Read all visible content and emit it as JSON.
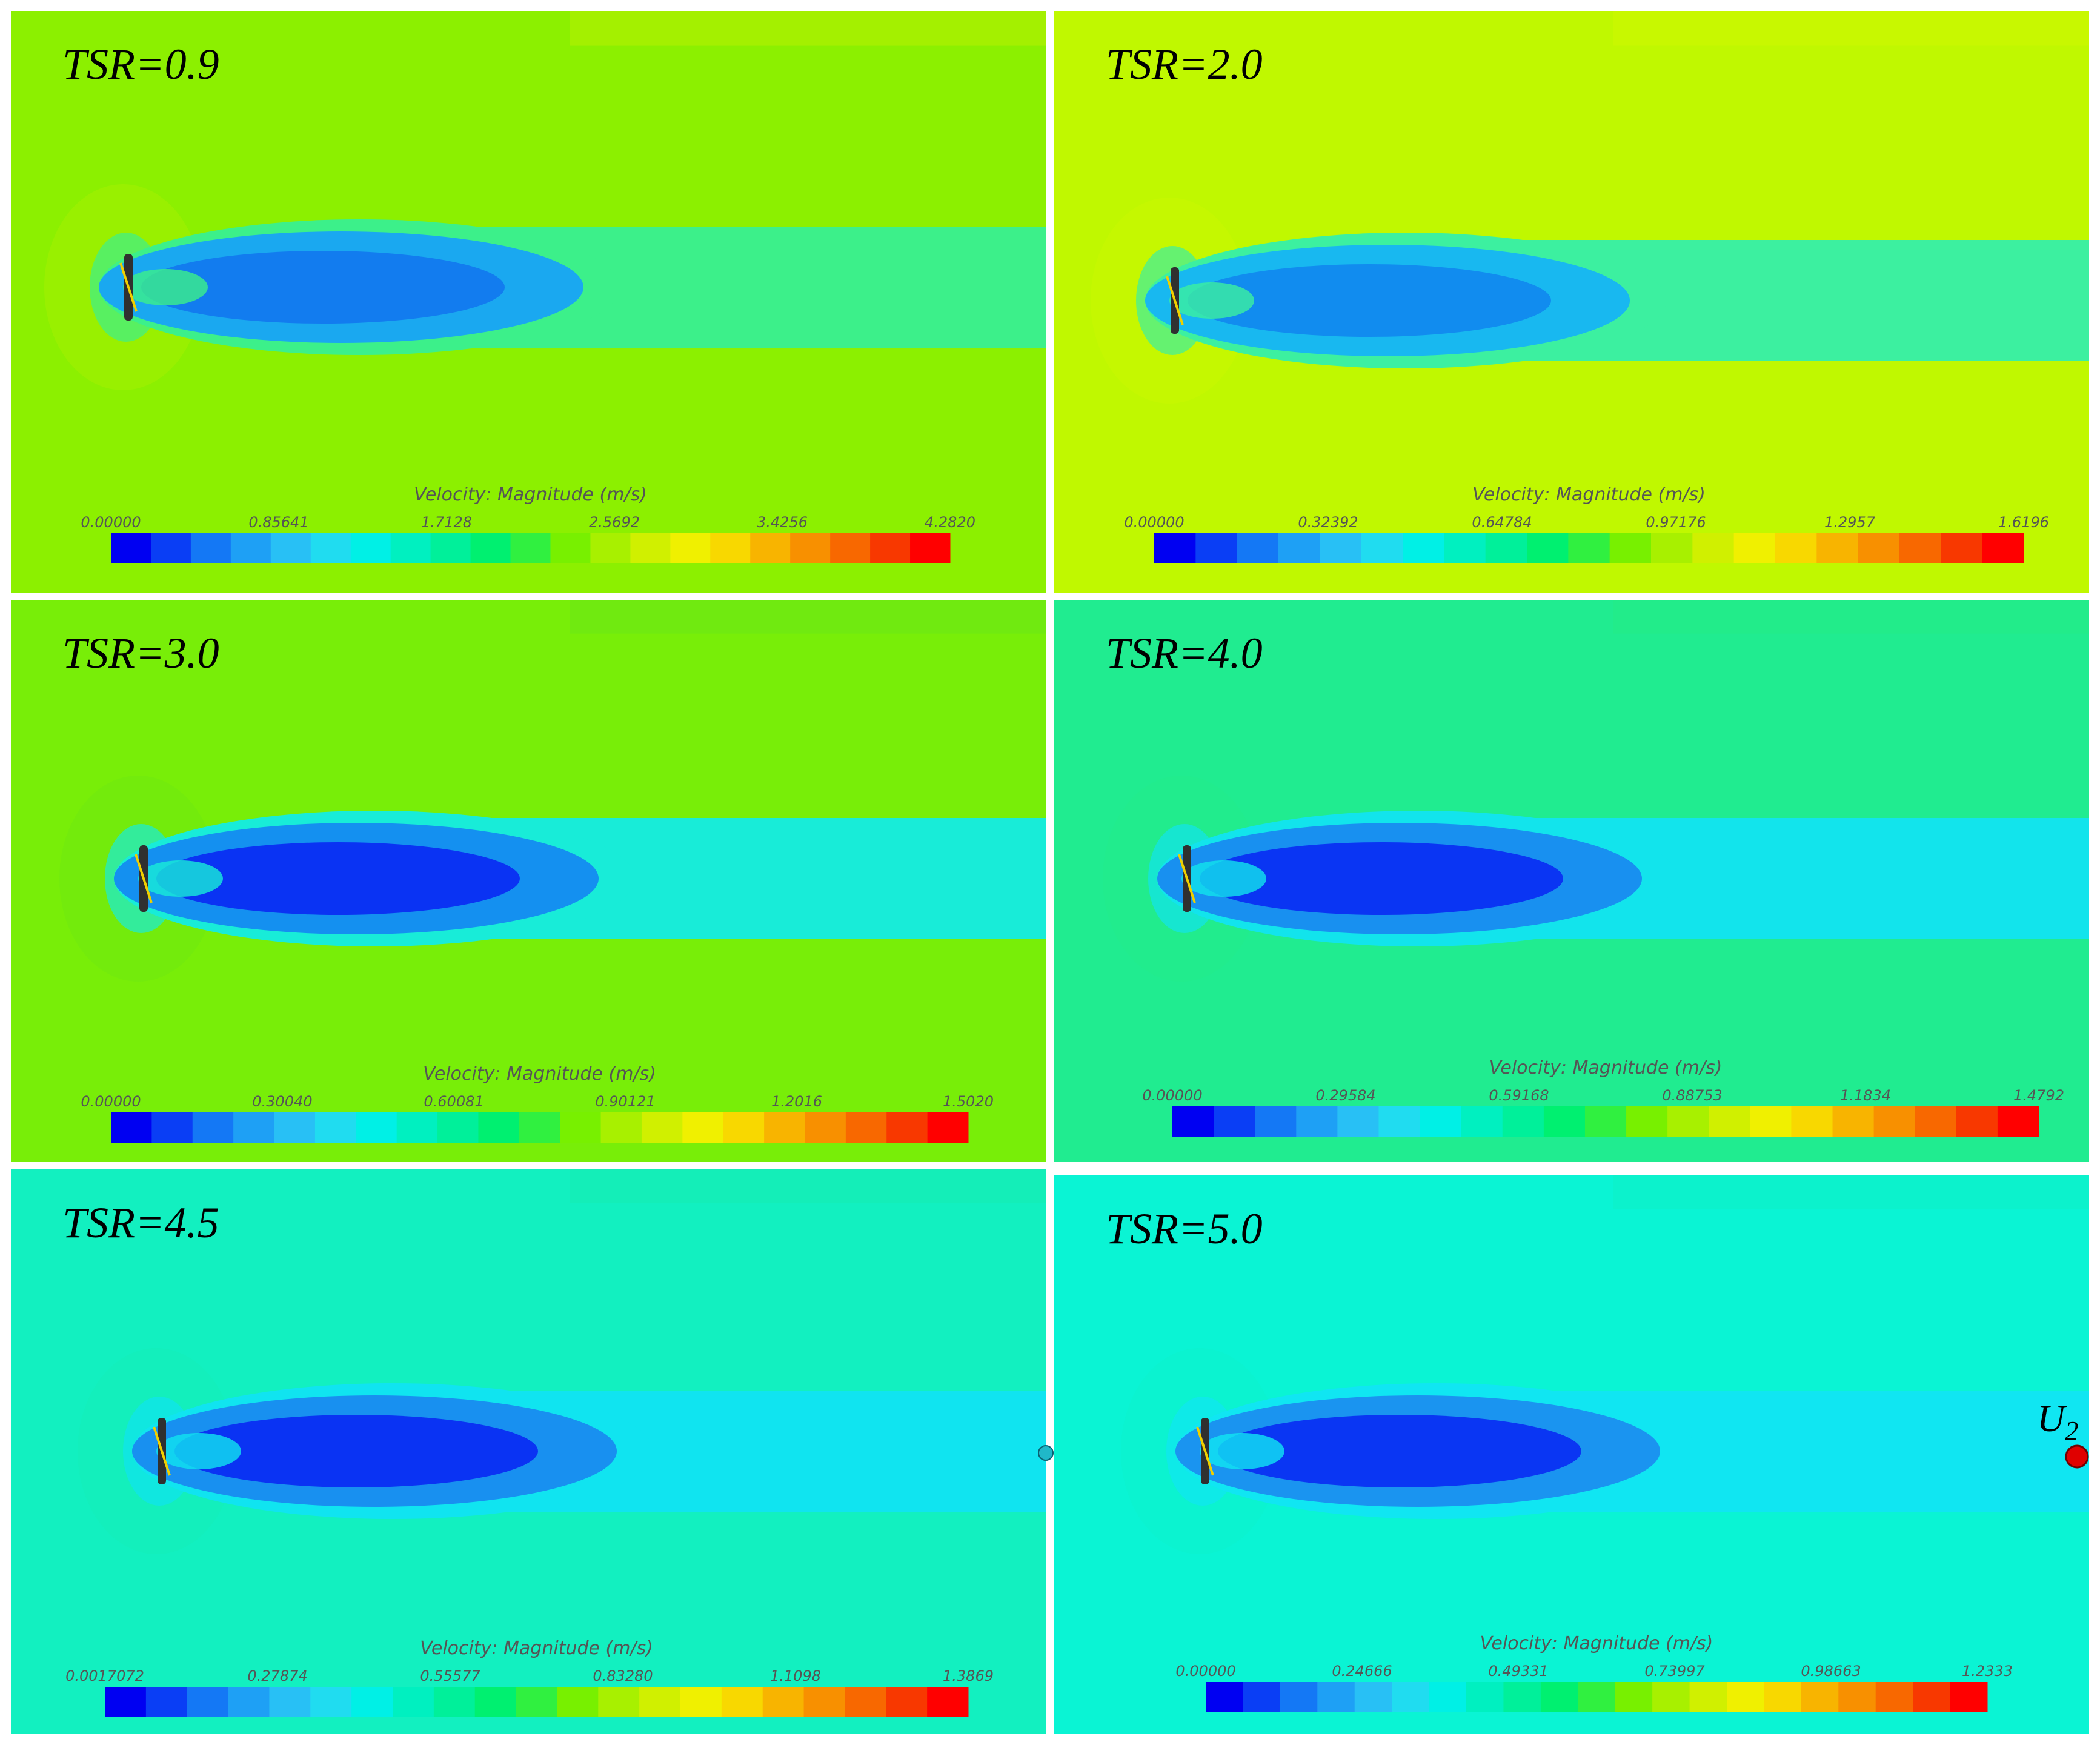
{
  "colormap": [
    "#0000f2",
    "#0a3ef5",
    "#1478f5",
    "#1ea0f5",
    "#28c0f5",
    "#20dcf0",
    "#00f0e6",
    "#00f0c0",
    "#00f09a",
    "#00f070",
    "#30f040",
    "#78f000",
    "#a8f000",
    "#d0f000",
    "#f0f000",
    "#f8d800",
    "#f8b400",
    "#f89000",
    "#f86800",
    "#f83800",
    "#ff0000"
  ],
  "colorbar_title": "Velocity: Magnitude (m/s)",
  "panels": [
    {
      "label": "TSR=0.9",
      "background": "#8cf000",
      "upper_band": "#a4f000",
      "wake_tail": "#3cf08a",
      "wake_core": "#1aa8f0",
      "wake_dark": "#0a50ee",
      "ticks": [
        "0.00000",
        "0.85641",
        "1.7128",
        "2.5692",
        "3.4256",
        "4.2820"
      ]
    },
    {
      "label": "TSR=2.0",
      "background": "#c0f800",
      "upper_band": "#c8f800",
      "wake_tail": "#3cf0a0",
      "wake_core": "#18b8f0",
      "wake_dark": "#0a60ee",
      "ticks": [
        "0.00000",
        "0.32392",
        "0.64784",
        "0.97176",
        "1.2957",
        "1.6196"
      ]
    },
    {
      "label": "TSR=3.0",
      "background": "#78ee08",
      "upper_band": "#70ea10",
      "wake_tail": "#18ecd8",
      "wake_core": "#1490f0",
      "wake_dark": "#0a2ef2",
      "ticks": [
        "0.00000",
        "0.30040",
        "0.60081",
        "0.90121",
        "1.2016",
        "1.5020"
      ]
    },
    {
      "label": "TSR=4.0",
      "background": "#20ec90",
      "upper_band": "#22ec8a",
      "wake_tail": "#12e4ec",
      "wake_core": "#1890f0",
      "wake_dark": "#0a30f2",
      "ticks": [
        "0.00000",
        "0.29584",
        "0.59168",
        "0.88753",
        "1.1834",
        "1.4792"
      ]
    },
    {
      "label": "TSR=4.5",
      "background": "#12f0c0",
      "upper_band": "#14eeb8",
      "wake_tail": "#10e4f0",
      "wake_core": "#1890f0",
      "wake_dark": "#0a2ef2",
      "ticks": [
        "0.0017072",
        "0.27874",
        "0.55577",
        "0.83280",
        "1.1098",
        "1.3869"
      ]
    },
    {
      "label": "TSR=5.0",
      "background": "#0af4d4",
      "upper_band": "#0cf2cc",
      "wake_tail": "#10e6f2",
      "wake_core": "#1a94f0",
      "wake_dark": "#0a30f2",
      "ticks": [
        "0.00000",
        "0.24666",
        "0.49331",
        "0.73997",
        "0.98663",
        "1.2333"
      ]
    }
  ],
  "probe_label": "U",
  "probe_subscript": "2"
}
